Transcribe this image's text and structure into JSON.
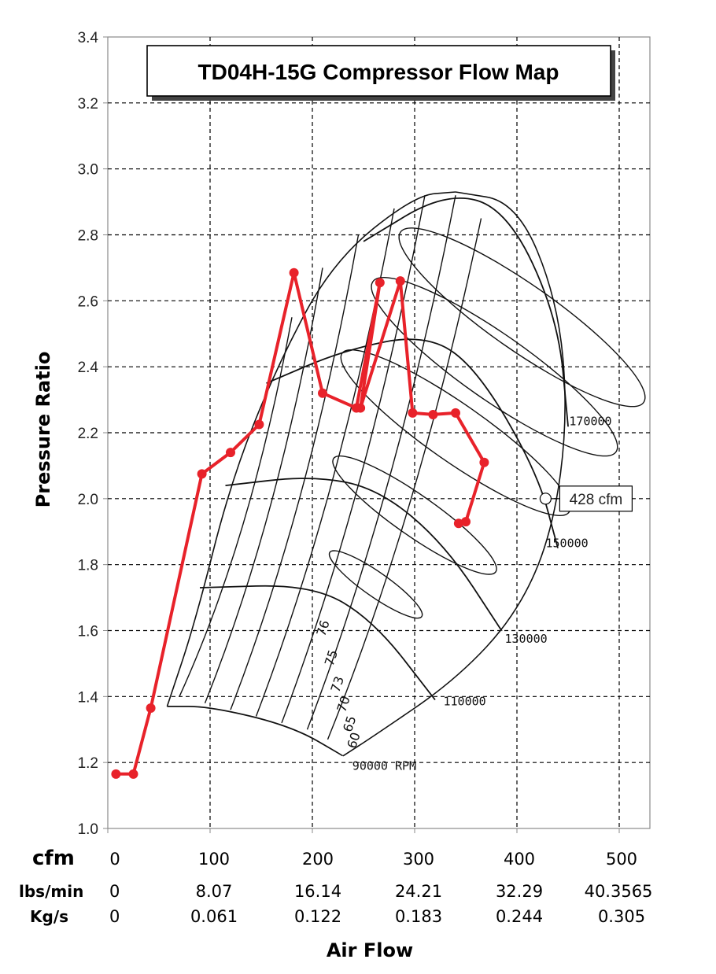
{
  "chart_data": {
    "type": "line",
    "title": "TD04H-15G Compressor Flow Map",
    "xlabel": "Air Flow",
    "ylabel": "Pressure Ratio",
    "xlim": [
      0,
      530
    ],
    "ylim": [
      1.0,
      3.4
    ],
    "grid": true,
    "x_ticks": [
      0,
      100,
      200,
      300,
      400,
      500
    ],
    "y_ticks": [
      "1.0",
      "1.2",
      "1.4",
      "1.6",
      "1.8",
      "2.0",
      "2.2",
      "2.4",
      "2.6",
      "2.8",
      "3.0",
      "3.2",
      "3.4"
    ],
    "unit_rows": [
      {
        "unit": "cfm",
        "values": [
          "0",
          "100",
          "200",
          "300",
          "400",
          "500"
        ]
      },
      {
        "unit": "lbs/min",
        "values": [
          "0",
          "8.07",
          "16.14",
          "24.21",
          "32.29",
          "40.3565"
        ]
      },
      {
        "unit": "Kg/s",
        "values": [
          "0",
          "0.061",
          "0.122",
          "0.183",
          "0.244",
          "0.305"
        ]
      }
    ],
    "speed_lines": [
      {
        "label": "90000 RPM",
        "points": [
          [
            58,
            1.37
          ],
          [
            100,
            1.37
          ],
          [
            180,
            1.31
          ],
          [
            230,
            1.22
          ]
        ]
      },
      {
        "label": "110000",
        "points": [
          [
            90,
            1.73
          ],
          [
            200,
            1.74
          ],
          [
            260,
            1.63
          ],
          [
            320,
            1.39
          ]
        ]
      },
      {
        "label": "130000",
        "points": [
          [
            115,
            2.04
          ],
          [
            200,
            2.07
          ],
          [
            265,
            2.03
          ],
          [
            330,
            1.86
          ],
          [
            385,
            1.6
          ]
        ]
      },
      {
        "label": "150000",
        "points": [
          [
            155,
            2.35
          ],
          [
            230,
            2.45
          ],
          [
            310,
            2.5
          ],
          [
            360,
            2.4
          ],
          [
            420,
            2.08
          ],
          [
            440,
            1.85
          ]
        ]
      },
      {
        "label": "170000",
        "points": [
          [
            250,
            2.78
          ],
          [
            330,
            2.93
          ],
          [
            390,
            2.88
          ],
          [
            440,
            2.55
          ],
          [
            450,
            2.22
          ]
        ]
      }
    ],
    "efficiency_labels": [
      "76",
      "75",
      "73",
      "70",
      "65",
      "60"
    ],
    "annotation": {
      "text": "428 cfm",
      "x": 428,
      "y": 2.0
    },
    "series": [
      {
        "color": "#e8222a",
        "x": [
          8,
          25,
          42,
          92,
          120,
          148,
          182,
          210,
          243,
          266,
          247,
          286,
          298,
          318,
          340,
          368,
          350,
          343
        ],
        "y": [
          1.165,
          1.165,
          1.365,
          2.075,
          2.14,
          2.225,
          2.685,
          2.32,
          2.275,
          2.655,
          2.275,
          2.66,
          2.26,
          2.255,
          2.26,
          2.11,
          1.93,
          1.925
        ]
      }
    ]
  }
}
